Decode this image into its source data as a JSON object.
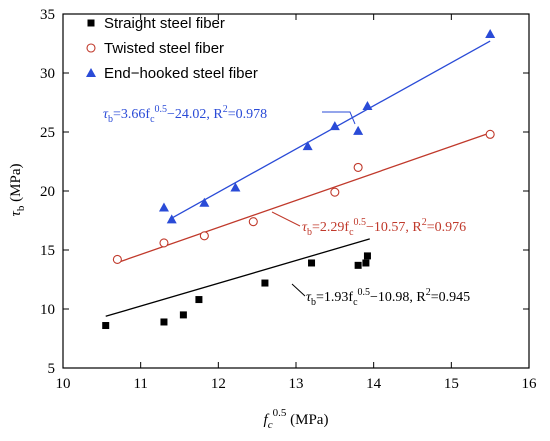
{
  "chart_data": {
    "type": "scatter",
    "title": "",
    "xlabel": {
      "main": "f",
      "sub": "c",
      "sup": "0.5",
      "unit": " (MPa)"
    },
    "ylabel": {
      "main": "τ",
      "sub": "b",
      "unit": " (MPa)"
    },
    "xlim": [
      10,
      16
    ],
    "ylim": [
      5,
      35
    ],
    "xticks": [
      10,
      11,
      12,
      13,
      14,
      15,
      16
    ],
    "yticks": [
      5,
      10,
      15,
      20,
      25,
      30,
      35
    ],
    "grid": false,
    "legend_position": "top-left",
    "series": [
      {
        "name": "Straight steel fiber",
        "marker": "square",
        "color": "#000000",
        "points": [
          [
            10.55,
            8.6
          ],
          [
            11.3,
            8.9
          ],
          [
            11.55,
            9.5
          ],
          [
            11.75,
            10.8
          ],
          [
            12.6,
            12.2
          ],
          [
            13.2,
            13.9
          ],
          [
            13.8,
            13.7
          ],
          [
            13.9,
            13.9
          ],
          [
            13.92,
            14.5
          ]
        ],
        "fit": {
          "slope": 1.93,
          "intercept": -10.98,
          "x_range": [
            10.55,
            13.95
          ],
          "color": "#000000"
        },
        "equation": {
          "lhs": "τ",
          "lhs_sub": "b",
          "mid": "=1.93f",
          "mid_sub": "c",
          "exp": "0.5",
          "rest": "−10.98,   R",
          "r_exp": "2",
          "r_val": "=0.945",
          "color": "#000000"
        }
      },
      {
        "name": "Twisted steel fiber",
        "marker": "circle-open",
        "color": "#c0392b",
        "points": [
          [
            10.7,
            14.2
          ],
          [
            11.3,
            15.6
          ],
          [
            11.82,
            16.2
          ],
          [
            12.45,
            17.4
          ],
          [
            13.5,
            19.9
          ],
          [
            13.8,
            22.0
          ],
          [
            15.5,
            24.8
          ]
        ],
        "fit": {
          "slope": 2.29,
          "intercept": -10.57,
          "x_range": [
            10.7,
            15.5
          ],
          "color": "#c0392b"
        },
        "equation": {
          "lhs": "τ",
          "lhs_sub": "b",
          "mid": "=2.29f",
          "mid_sub": "c",
          "exp": "0.5",
          "rest": "−10.57,   R",
          "r_exp": "2",
          "r_val": "=0.976",
          "color": "#c0392b"
        }
      },
      {
        "name": "End−hooked steel fiber",
        "marker": "triangle",
        "color": "#2a4bd7",
        "points": [
          [
            11.3,
            18.6
          ],
          [
            11.4,
            17.6
          ],
          [
            11.82,
            19.0
          ],
          [
            12.22,
            20.3
          ],
          [
            13.15,
            23.8
          ],
          [
            13.5,
            25.5
          ],
          [
            13.8,
            25.1
          ],
          [
            13.92,
            27.2
          ],
          [
            15.5,
            33.3
          ]
        ],
        "fit": {
          "slope": 3.66,
          "intercept": -24.02,
          "x_range": [
            11.37,
            15.5
          ],
          "color": "#2a4bd7"
        },
        "equation": {
          "lhs": "τ",
          "lhs_sub": "b",
          "mid": "=3.66f",
          "mid_sub": "c",
          "exp": "0.5",
          "rest": "−24.02,   R",
          "r_exp": "2",
          "r_val": "=0.978",
          "color": "#2a4bd7"
        }
      }
    ]
  }
}
